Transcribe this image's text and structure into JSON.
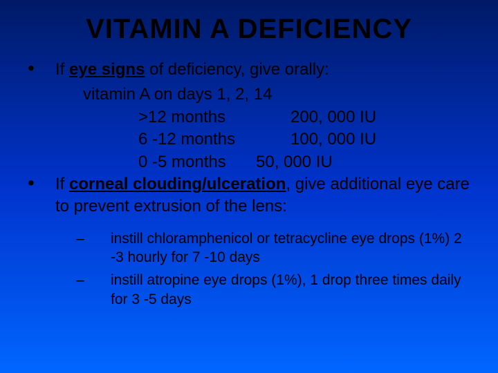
{
  "background": {
    "gradient_start": "#001a66",
    "gradient_mid": "#0033cc",
    "gradient_end": "#0066ff"
  },
  "text_color": "#000000",
  "title": "VITAMIN A DEFICIENCY",
  "title_fontsize": 40,
  "body_fontsize": 24,
  "sub_fontsize": 21,
  "bullet1": {
    "prefix": "If ",
    "bold_underlined": "eye signs",
    "suffix": " of deficiency, give orally:"
  },
  "line_vitamin": "vitamin A on days 1, 2, 14",
  "doses": [
    {
      "age": ">12 months",
      "iu": "200, 000 IU",
      "offset": false
    },
    {
      "age": "6 -12 months",
      "iu": "100, 000 IU",
      "offset": false
    },
    {
      "age": "0 -5 months",
      "iu": "50, 000 IU",
      "offset": true
    }
  ],
  "bullet2": {
    "prefix": "If ",
    "bold_underlined": "corneal clouding/ulceration",
    "suffix": ", give additional eye care to prevent extrusion of the lens:"
  },
  "sub_bullets": [
    "instill chloramphenicol or tetracycline eye drops (1%) 2 -3 hourly for 7 -10 days",
    "instill atropine eye drops (1%), 1 drop three times daily for 3 -5 days"
  ]
}
